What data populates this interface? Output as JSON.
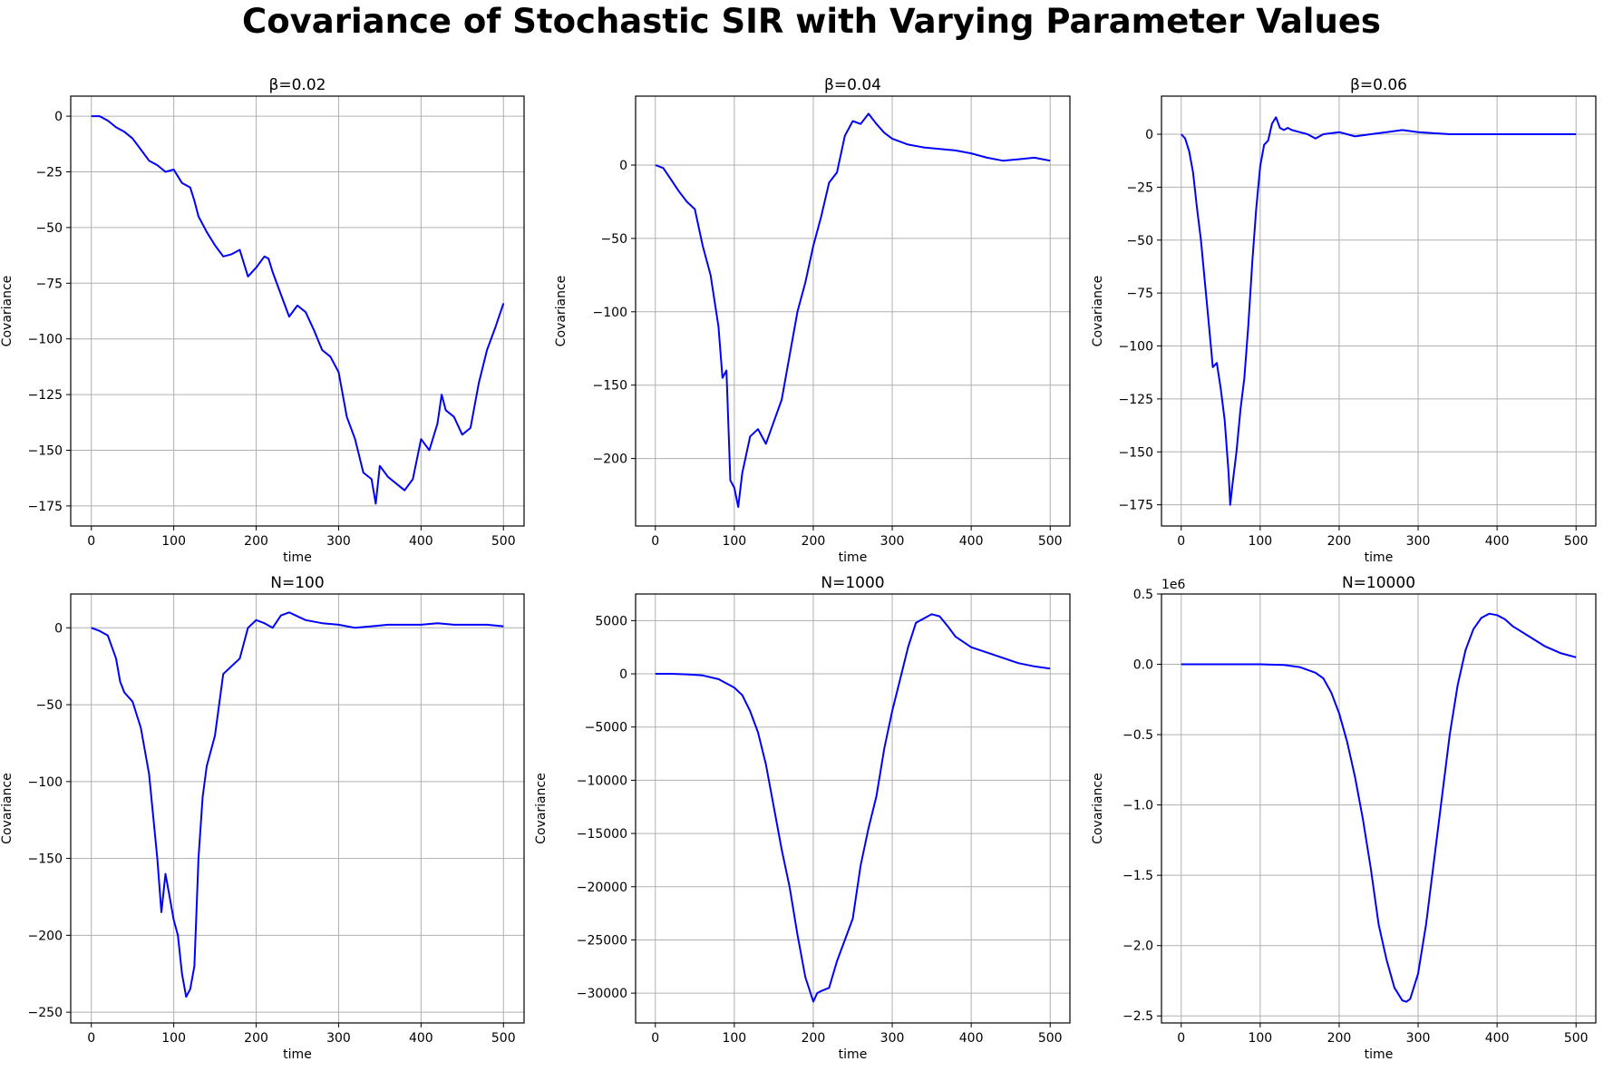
{
  "figure": {
    "title": "Covariance of Stochastic SIR with Varying Parameter Values",
    "line_color": "#0000ff",
    "grid_color": "#b0b0b0"
  },
  "chart_data": [
    {
      "type": "line",
      "title": "β=0.02",
      "xlabel": "time",
      "ylabel": "Covariance",
      "xlim": [
        -25,
        525
      ],
      "ylim": [
        -184,
        9
      ],
      "xticks": [
        0,
        100,
        200,
        300,
        400,
        500
      ],
      "yticks": [
        0,
        -25,
        -50,
        -75,
        -100,
        -125,
        -150,
        -175
      ],
      "ytick_labels": [
        "0",
        "−25",
        "−50",
        "−75",
        "−100",
        "−125",
        "−150",
        "−175"
      ],
      "offset_label": "",
      "grid": true,
      "legend": "none",
      "x": [
        0,
        10,
        20,
        30,
        40,
        50,
        60,
        70,
        80,
        90,
        100,
        110,
        120,
        125,
        130,
        140,
        150,
        160,
        170,
        180,
        190,
        200,
        210,
        215,
        220,
        230,
        240,
        250,
        260,
        270,
        280,
        290,
        300,
        310,
        320,
        330,
        340,
        345,
        350,
        360,
        370,
        380,
        390,
        400,
        410,
        420,
        425,
        430,
        440,
        450,
        460,
        470,
        480,
        490,
        500
      ],
      "y": [
        0,
        0,
        -2,
        -5,
        -7,
        -10,
        -15,
        -20,
        -22,
        -25,
        -24,
        -30,
        -32,
        -38,
        -45,
        -52,
        -58,
        -63,
        -62,
        -60,
        -72,
        -68,
        -63,
        -64,
        -70,
        -80,
        -90,
        -85,
        -88,
        -96,
        -105,
        -108,
        -115,
        -135,
        -145,
        -160,
        -163,
        -174,
        -157,
        -162,
        -165,
        -168,
        -163,
        -145,
        -150,
        -138,
        -125,
        -132,
        -135,
        -143,
        -140,
        -120,
        -105,
        -95,
        -84
      ]
    },
    {
      "type": "line",
      "title": "β=0.04",
      "xlabel": "time",
      "ylabel": "Covariance",
      "xlim": [
        -25,
        525
      ],
      "ylim": [
        -246,
        47
      ],
      "xticks": [
        0,
        100,
        200,
        300,
        400,
        500
      ],
      "yticks": [
        0,
        -50,
        -100,
        -150,
        -200
      ],
      "ytick_labels": [
        "0",
        "−50",
        "−100",
        "−150",
        "−200"
      ],
      "offset_label": "",
      "grid": true,
      "legend": "none",
      "x": [
        0,
        10,
        20,
        30,
        40,
        50,
        60,
        70,
        80,
        85,
        90,
        95,
        100,
        105,
        110,
        120,
        130,
        140,
        150,
        160,
        170,
        180,
        190,
        200,
        210,
        220,
        230,
        240,
        250,
        260,
        270,
        280,
        290,
        300,
        320,
        340,
        360,
        380,
        400,
        420,
        440,
        460,
        480,
        500
      ],
      "y": [
        0,
        -2,
        -10,
        -18,
        -25,
        -30,
        -55,
        -75,
        -110,
        -145,
        -140,
        -215,
        -220,
        -233,
        -210,
        -185,
        -180,
        -190,
        -175,
        -160,
        -130,
        -100,
        -80,
        -55,
        -35,
        -12,
        -5,
        20,
        30,
        28,
        35,
        28,
        22,
        18,
        14,
        12,
        11,
        10,
        8,
        5,
        3,
        4,
        5,
        3
      ]
    },
    {
      "type": "line",
      "title": "β=0.06",
      "xlabel": "time",
      "ylabel": "Covariance",
      "xlim": [
        -25,
        525
      ],
      "ylim": [
        -185,
        18
      ],
      "xticks": [
        0,
        100,
        200,
        300,
        400,
        500
      ],
      "yticks": [
        0,
        -25,
        -50,
        -75,
        -100,
        -125,
        -150,
        -175
      ],
      "ytick_labels": [
        "0",
        "−25",
        "−50",
        "−75",
        "−100",
        "−125",
        "−150",
        "−175"
      ],
      "offset_label": "",
      "grid": true,
      "legend": "none",
      "x": [
        0,
        5,
        10,
        15,
        20,
        25,
        30,
        35,
        40,
        45,
        50,
        55,
        60,
        62,
        65,
        70,
        75,
        80,
        85,
        90,
        95,
        100,
        105,
        110,
        115,
        120,
        125,
        130,
        135,
        140,
        150,
        160,
        170,
        180,
        200,
        220,
        240,
        260,
        280,
        300,
        340,
        380,
        420,
        460,
        500
      ],
      "y": [
        0,
        -2,
        -8,
        -18,
        -35,
        -50,
        -70,
        -90,
        -110,
        -108,
        -120,
        -135,
        -160,
        -175,
        -165,
        -150,
        -130,
        -115,
        -90,
        -60,
        -35,
        -15,
        -5,
        -3,
        5,
        8,
        3,
        2,
        3,
        2,
        1,
        0,
        -2,
        0,
        1,
        -1,
        0,
        1,
        2,
        1,
        0,
        0,
        0,
        0,
        0
      ]
    },
    {
      "type": "line",
      "title": "N=100",
      "xlabel": "time",
      "ylabel": "Covariance",
      "xlim": [
        -25,
        525
      ],
      "ylim": [
        -257,
        22
      ],
      "xticks": [
        0,
        100,
        200,
        300,
        400,
        500
      ],
      "yticks": [
        0,
        -50,
        -100,
        -150,
        -200,
        -250
      ],
      "ytick_labels": [
        "0",
        "−50",
        "−100",
        "−150",
        "−200",
        "−250"
      ],
      "offset_label": "",
      "grid": true,
      "legend": "none",
      "x": [
        0,
        10,
        20,
        30,
        35,
        40,
        50,
        60,
        70,
        80,
        85,
        90,
        95,
        100,
        105,
        110,
        115,
        120,
        125,
        130,
        135,
        140,
        150,
        160,
        170,
        180,
        190,
        200,
        210,
        220,
        230,
        240,
        260,
        280,
        300,
        320,
        340,
        360,
        380,
        400,
        420,
        440,
        460,
        480,
        500
      ],
      "y": [
        0,
        -2,
        -5,
        -20,
        -35,
        -42,
        -48,
        -65,
        -95,
        -150,
        -185,
        -160,
        -175,
        -190,
        -200,
        -225,
        -240,
        -235,
        -220,
        -150,
        -110,
        -90,
        -70,
        -30,
        -25,
        -20,
        0,
        5,
        3,
        0,
        8,
        10,
        5,
        3,
        2,
        0,
        1,
        2,
        2,
        2,
        3,
        2,
        2,
        2,
        1
      ]
    },
    {
      "type": "line",
      "title": "N=1000",
      "xlabel": "time",
      "ylabel": "Covariance",
      "xlim": [
        -25,
        525
      ],
      "ylim": [
        -32800,
        7500
      ],
      "xticks": [
        0,
        100,
        200,
        300,
        400,
        500
      ],
      "yticks": [
        5000,
        0,
        -5000,
        -10000,
        -15000,
        -20000,
        -25000,
        -30000
      ],
      "ytick_labels": [
        "5000",
        "0",
        "−5000",
        "−10000",
        "−15000",
        "−20000",
        "−25000",
        "−30000"
      ],
      "offset_label": "",
      "grid": true,
      "legend": "none",
      "x": [
        0,
        20,
        40,
        60,
        80,
        100,
        110,
        120,
        130,
        140,
        150,
        160,
        170,
        180,
        190,
        200,
        205,
        210,
        220,
        230,
        240,
        250,
        260,
        270,
        280,
        290,
        300,
        310,
        320,
        330,
        340,
        350,
        360,
        370,
        380,
        400,
        420,
        440,
        460,
        480,
        500
      ],
      "y": [
        0,
        0,
        -50,
        -150,
        -500,
        -1300,
        -2000,
        -3500,
        -5500,
        -8500,
        -12500,
        -16500,
        -20000,
        -24500,
        -28500,
        -30800,
        -30000,
        -29800,
        -29500,
        -27000,
        -25000,
        -23000,
        -18000,
        -14500,
        -11500,
        -7000,
        -3500,
        -500,
        2500,
        4800,
        5200,
        5600,
        5400,
        4500,
        3500,
        2500,
        2000,
        1500,
        1000,
        700,
        500
      ]
    },
    {
      "type": "line",
      "title": "N=10000",
      "xlabel": "time",
      "ylabel": "Covariance",
      "xlim": [
        -25,
        525
      ],
      "ylim": [
        -2.55,
        0.5
      ],
      "xticks": [
        0,
        100,
        200,
        300,
        400,
        500
      ],
      "yticks": [
        0.5,
        0.0,
        -0.5,
        -1.0,
        -1.5,
        -2.0,
        -2.5
      ],
      "ytick_labels": [
        "0.5",
        "0.0",
        "−0.5",
        "−1.0",
        "−1.5",
        "−2.0",
        "−2.5"
      ],
      "offset_label": "1e6",
      "grid": true,
      "legend": "none",
      "x": [
        0,
        50,
        100,
        130,
        150,
        170,
        180,
        190,
        200,
        210,
        220,
        230,
        240,
        250,
        260,
        270,
        280,
        285,
        290,
        300,
        310,
        320,
        330,
        340,
        350,
        360,
        370,
        380,
        390,
        400,
        410,
        420,
        440,
        460,
        480,
        500
      ],
      "y": [
        0,
        0,
        0,
        -0.005,
        -0.02,
        -0.06,
        -0.1,
        -0.2,
        -0.35,
        -0.55,
        -0.8,
        -1.1,
        -1.45,
        -1.85,
        -2.1,
        -2.3,
        -2.39,
        -2.4,
        -2.38,
        -2.2,
        -1.85,
        -1.4,
        -0.95,
        -0.5,
        -0.15,
        0.1,
        0.25,
        0.33,
        0.36,
        0.35,
        0.32,
        0.27,
        0.2,
        0.13,
        0.08,
        0.05
      ]
    }
  ]
}
